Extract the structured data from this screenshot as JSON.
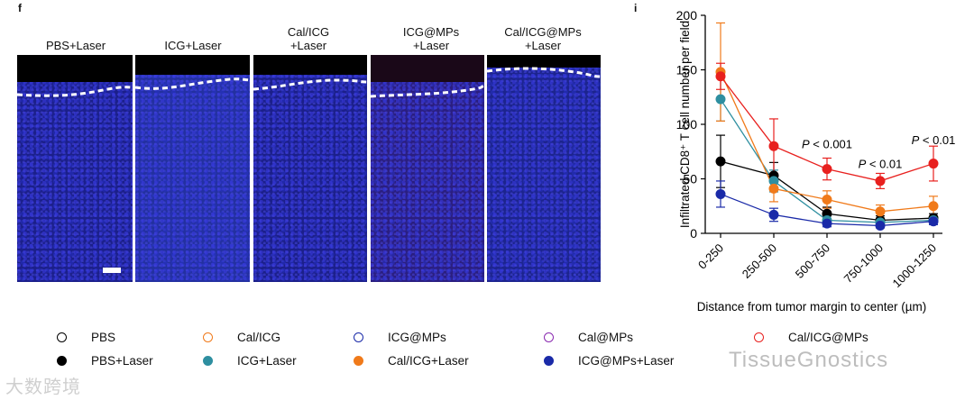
{
  "panels": {
    "left_letter": "f",
    "right_letter": "i"
  },
  "images": [
    {
      "label1": "PBS+Laser",
      "label2": ""
    },
    {
      "label1": "ICG+Laser",
      "label2": ""
    },
    {
      "label1": "Cal/ICG",
      "label2": "+Laser"
    },
    {
      "label1": "ICG@MPs",
      "label2": "+Laser"
    },
    {
      "label1": "Cal/ICG@MPs",
      "label2": "+Laser"
    }
  ],
  "chart_data": {
    "type": "line",
    "categories": [
      "0-250",
      "250-500",
      "500-750",
      "750-1000",
      "1000-1250"
    ],
    "xlabel": "Distance from tumor margin to center (µm)",
    "ylabel": "Infiltrated CD8⁺ T cell number per field",
    "ylim": [
      0,
      200
    ],
    "yticks": [
      0,
      50,
      100,
      150,
      200
    ],
    "series": [
      {
        "name": "PBS+Laser",
        "color": "#000000",
        "values": [
          66,
          53,
          18,
          12,
          14
        ],
        "err": [
          24,
          12,
          6,
          4,
          4
        ]
      },
      {
        "name": "ICG+Laser",
        "color": "#2e8fa0",
        "values": [
          123,
          48,
          12,
          10,
          12
        ],
        "err": [
          20,
          10,
          4,
          3,
          4
        ]
      },
      {
        "name": "Cal/ICG+Laser",
        "color": "#f07a1a",
        "values": [
          148,
          41,
          31,
          20,
          25
        ],
        "err": [
          45,
          12,
          8,
          6,
          9
        ]
      },
      {
        "name": "ICG@MPs+Laser",
        "color": "#1a2aa8",
        "values": [
          36,
          17,
          9,
          7,
          11
        ],
        "err": [
          12,
          6,
          3,
          2,
          3
        ]
      },
      {
        "name": "Cal/ICG@MPs+Laser",
        "color": "#e8201e",
        "values": [
          144,
          80,
          59,
          48,
          64
        ],
        "err": [
          12,
          25,
          10,
          7,
          16
        ]
      }
    ],
    "annotations": [
      {
        "prefix": "P",
        "text": " < 0.001",
        "x_index": 2,
        "y": 78
      },
      {
        "prefix": "P",
        "text": " < 0.01",
        "x_index": 3,
        "y": 60
      },
      {
        "prefix": "P",
        "text": " < 0.01",
        "x_index": 4,
        "y": 82
      }
    ]
  },
  "legend": [
    {
      "label": "PBS",
      "color": "#000000",
      "filled": false
    },
    {
      "label": "Cal/ICG",
      "color": "#f07a1a",
      "filled": false
    },
    {
      "label": "ICG@MPs",
      "color": "#1a2aa8",
      "filled": false
    },
    {
      "label": "Cal@MPs",
      "color": "#8a2ab0",
      "filled": false
    },
    {
      "label": "Cal/ICG@MPs",
      "color": "#e8201e",
      "filled": false
    },
    {
      "label": "PBS+Laser",
      "color": "#000000",
      "filled": true
    },
    {
      "label": "ICG+Laser",
      "color": "#2e8fa0",
      "filled": true
    },
    {
      "label": "Cal/ICG+Laser",
      "color": "#f07a1a",
      "filled": true
    },
    {
      "label": "ICG@MPs+Laser",
      "color": "#1a2aa8",
      "filled": true
    }
  ],
  "watermarks": {
    "left": "大数跨境",
    "right": "TissueGnostics"
  }
}
